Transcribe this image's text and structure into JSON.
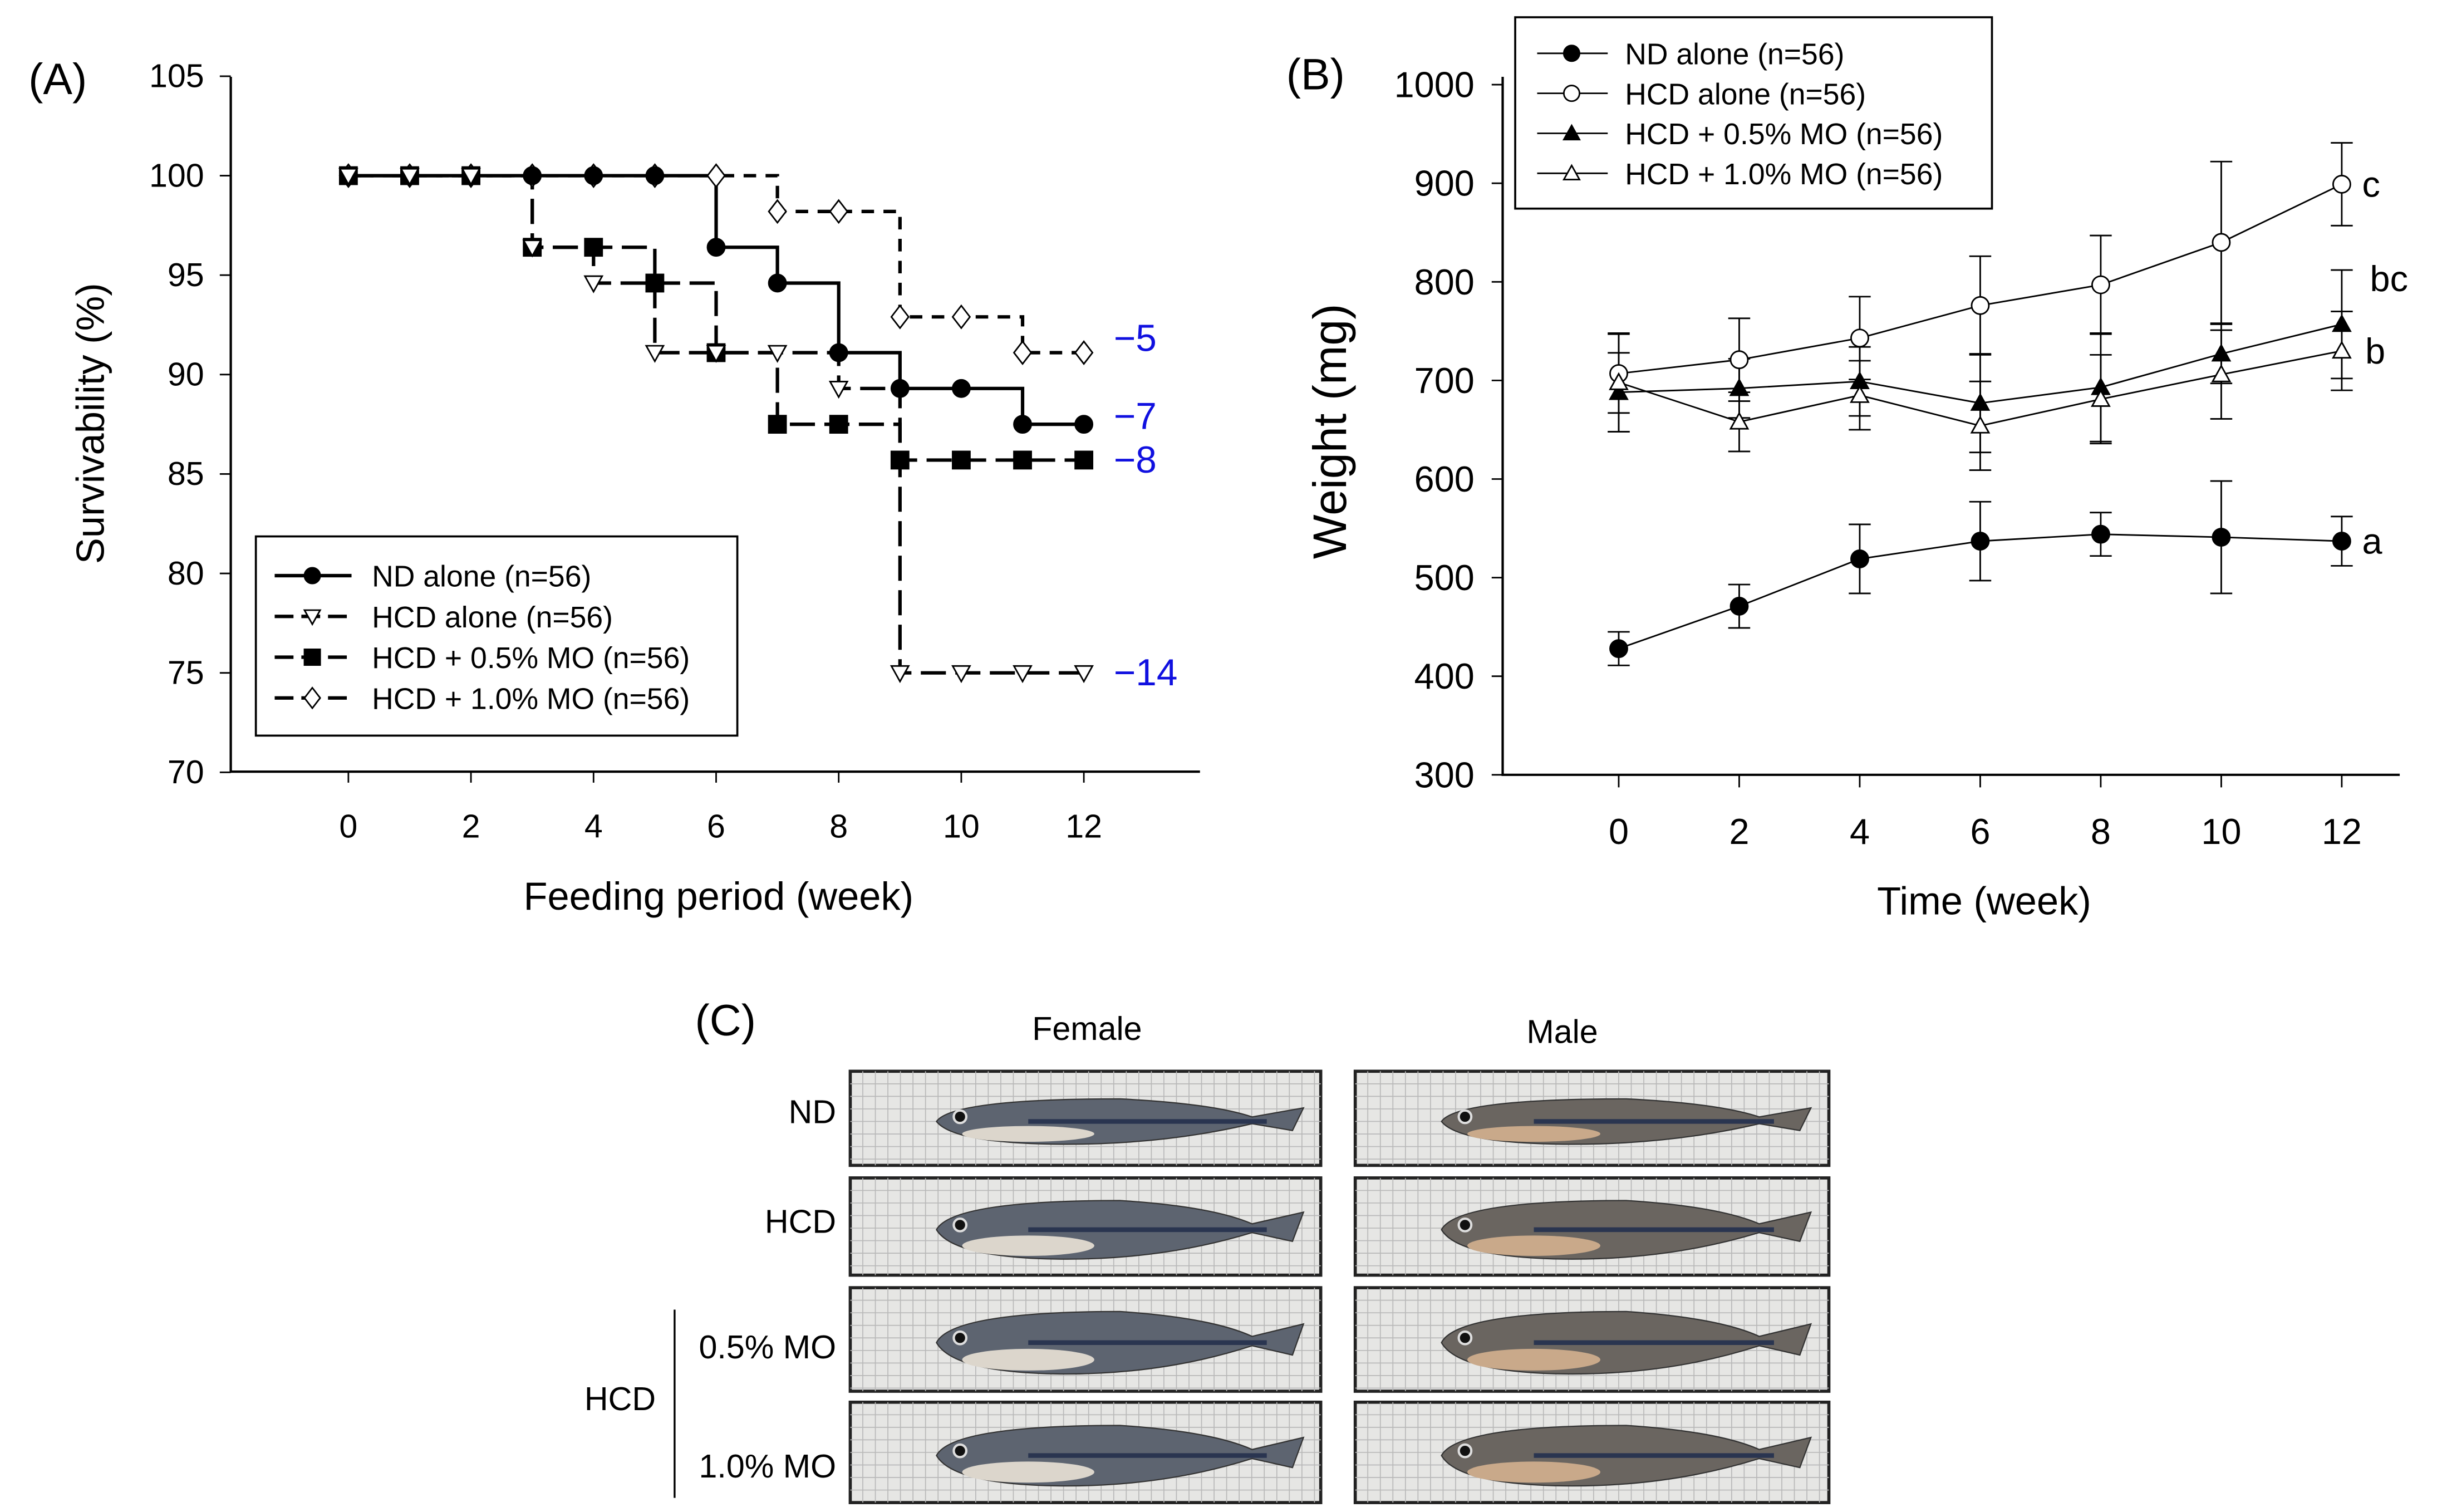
{
  "chart_data": [
    {
      "type": "line",
      "panel": "(A)",
      "xlabel": "Feeding period (week)",
      "ylabel": "Survivability (%)",
      "xlim": [
        -2,
        14
      ],
      "ylim": [
        70,
        105
      ],
      "xticks": [
        0,
        2,
        4,
        6,
        8,
        10,
        12
      ],
      "yticks": [
        70,
        75,
        80,
        85,
        90,
        95,
        100,
        105
      ],
      "step": true,
      "legend": "bottom-left",
      "x": [
        0,
        1,
        2,
        3,
        4,
        5,
        6,
        7,
        8,
        9,
        10,
        11,
        12
      ],
      "series": [
        {
          "name": "ND alone (n=56)",
          "marker": "filled-circle",
          "dash": "solid",
          "values": [
            100,
            100,
            100,
            100,
            100,
            100,
            96.4,
            94.6,
            91.1,
            89.3,
            89.3,
            87.5,
            87.5
          ],
          "end_label": "−7"
        },
        {
          "name": "HCD alone (n=56)",
          "marker": "open-triangle-down",
          "dash": "long",
          "values": [
            100,
            100,
            100,
            96.4,
            94.6,
            91.1,
            91.1,
            91.1,
            89.3,
            75,
            75,
            75,
            75
          ],
          "end_label": "−14"
        },
        {
          "name": "HCD + 0.5% MO (n=56)",
          "marker": "filled-square",
          "dash": "long",
          "values": [
            100,
            100,
            100,
            96.4,
            96.4,
            94.6,
            91.1,
            87.5,
            87.5,
            85.7,
            85.7,
            85.7,
            85.7
          ],
          "end_label": "−8"
        },
        {
          "name": "HCD + 1.0% MO (n=56)",
          "marker": "open-diamond",
          "dash": "short",
          "values": [
            100,
            100,
            100,
            100,
            100,
            100,
            100,
            98.2,
            98.2,
            92.9,
            92.9,
            91.1,
            91.1
          ],
          "end_label": "−5"
        }
      ]
    },
    {
      "type": "line",
      "panel": "(B)",
      "xlabel": "Time (week)",
      "ylabel": "Weight (mg)",
      "xlim": [
        -2,
        14
      ],
      "ylim": [
        300,
        1000
      ],
      "xticks": [
        0,
        2,
        4,
        6,
        8,
        10,
        12
      ],
      "yticks": [
        300,
        400,
        500,
        600,
        700,
        800,
        900,
        1000
      ],
      "legend": "top-left",
      "x": [
        0,
        2,
        4,
        6,
        8,
        10,
        12
      ],
      "series": [
        {
          "name": "ND alone (n=56)",
          "marker": "filled-circle",
          "values": [
            428,
            471,
            519,
            537,
            544,
            541,
            537
          ],
          "error": [
            17,
            22,
            35,
            40,
            22,
            57,
            25
          ],
          "letter": "a"
        },
        {
          "name": "HCD alone (n=56)",
          "marker": "open-circle",
          "values": [
            707,
            721,
            743,
            776,
            797,
            840,
            899
          ],
          "error": [
            40,
            42,
            42,
            50,
            50,
            82,
            42
          ],
          "letter": "c"
        },
        {
          "name": "HCD + 0.5% MO (n=56)",
          "marker": "filled-triangle",
          "values": [
            688,
            692,
            699,
            677,
            693,
            727,
            757
          ],
          "error": [
            40,
            30,
            35,
            50,
            55,
            30,
            55
          ],
          "letter": "bc"
        },
        {
          "name": "HCD + 1.0% MO (n=56)",
          "marker": "open-triangle",
          "values": [
            698,
            658,
            685,
            654,
            681,
            706,
            730
          ],
          "error": [
            50,
            30,
            35,
            45,
            45,
            45,
            40
          ],
          "letter": "b"
        }
      ]
    }
  ],
  "panelC": {
    "label": "(C)",
    "columns": [
      "Female",
      "Male"
    ],
    "rows": [
      "ND",
      "HCD",
      "0.5% MO",
      "1.0% MO"
    ],
    "group_label": "HCD"
  }
}
